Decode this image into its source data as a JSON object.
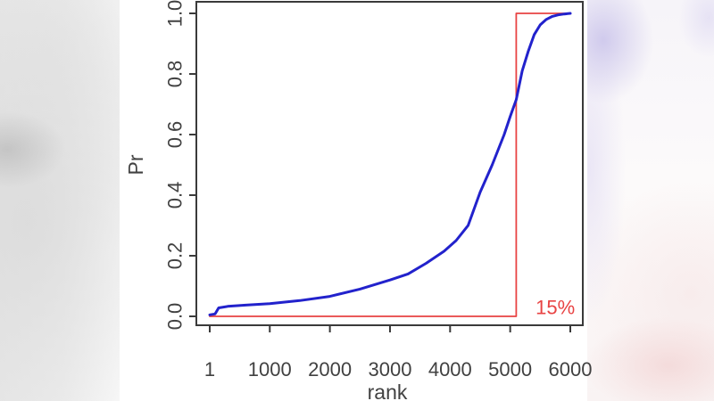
{
  "colors": {
    "axis": "#3a3a3a",
    "tick_label": "#414141",
    "curve_blue": "#2222cc",
    "step_red": "#e84343",
    "panel_bg": "#ffffff"
  },
  "chart_data": {
    "type": "line",
    "xlabel": "rank",
    "ylabel": "Pr",
    "xlim": [
      1,
      6000
    ],
    "ylim": [
      0.0,
      1.0
    ],
    "grid": false,
    "box": true,
    "legend": "none",
    "x_ticks": [
      {
        "value": 1,
        "label": "1"
      },
      {
        "value": 1000,
        "label": "1000"
      },
      {
        "value": 2000,
        "label": "2000"
      },
      {
        "value": 3000,
        "label": "3000"
      },
      {
        "value": 4000,
        "label": "4000"
      },
      {
        "value": 5000,
        "label": "5000"
      },
      {
        "value": 6000,
        "label": "6000"
      }
    ],
    "y_ticks": [
      {
        "value": 0.0,
        "label": "0.0"
      },
      {
        "value": 0.2,
        "label": "0.2"
      },
      {
        "value": 0.4,
        "label": "0.4"
      },
      {
        "value": 0.6,
        "label": "0.6"
      },
      {
        "value": 0.8,
        "label": "0.8"
      },
      {
        "value": 1.0,
        "label": "1.0"
      }
    ],
    "series": [
      {
        "name": "top-15-percent-step",
        "color": "#e84343",
        "width": 1.8,
        "points": [
          [
            1,
            0.0
          ],
          [
            5100,
            0.0
          ],
          [
            5100,
            1.0
          ],
          [
            6000,
            1.0
          ]
        ]
      },
      {
        "name": "empirical-cdf",
        "color": "#2222cc",
        "width": 3,
        "points": [
          [
            1,
            0.005
          ],
          [
            90,
            0.008
          ],
          [
            150,
            0.028
          ],
          [
            300,
            0.033
          ],
          [
            600,
            0.037
          ],
          [
            1000,
            0.042
          ],
          [
            1500,
            0.052
          ],
          [
            2000,
            0.066
          ],
          [
            2500,
            0.09
          ],
          [
            3000,
            0.12
          ],
          [
            3300,
            0.14
          ],
          [
            3600,
            0.175
          ],
          [
            3900,
            0.215
          ],
          [
            4100,
            0.25
          ],
          [
            4300,
            0.3
          ],
          [
            4500,
            0.41
          ],
          [
            4700,
            0.5
          ],
          [
            4900,
            0.6
          ],
          [
            5000,
            0.66
          ],
          [
            5100,
            0.715
          ],
          [
            5200,
            0.81
          ],
          [
            5300,
            0.875
          ],
          [
            5400,
            0.93
          ],
          [
            5500,
            0.962
          ],
          [
            5600,
            0.98
          ],
          [
            5700,
            0.99
          ],
          [
            5800,
            0.995
          ],
          [
            5900,
            0.998
          ],
          [
            6000,
            1.0
          ]
        ]
      }
    ],
    "annotations": [
      {
        "text": "15%",
        "x": 5750,
        "y": 0.03,
        "color": "#e84343",
        "font_size": 22
      }
    ]
  }
}
